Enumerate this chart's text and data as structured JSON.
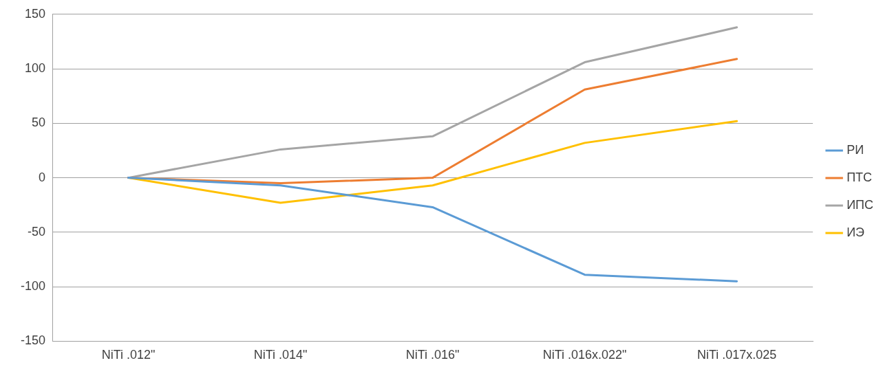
{
  "chart_data": {
    "type": "line",
    "categories": [
      "NiTi .012\"",
      "NiTi .014\"",
      "NiTi .016\"",
      "NiTi .016x.022\"",
      "NiTi .017x.025"
    ],
    "series": [
      {
        "name": "РИ",
        "color": "#5b9bd5",
        "values": [
          0,
          -7,
          -27,
          -89,
          -95
        ]
      },
      {
        "name": "ПТС",
        "color": "#ed7d31",
        "values": [
          0,
          -5,
          0,
          81,
          109
        ]
      },
      {
        "name": "ИПС",
        "color": "#a5a5a5",
        "values": [
          0,
          26,
          38,
          106,
          138
        ]
      },
      {
        "name": "ИЭ",
        "color": "#ffc000",
        "values": [
          0,
          -23,
          -7,
          32,
          52
        ]
      }
    ],
    "ylim": [
      -150,
      150
    ],
    "yticks": [
      -150,
      -100,
      -50,
      0,
      50,
      100,
      150
    ],
    "grid": "y",
    "legend": "right",
    "marker": "none",
    "line_style": "solid"
  }
}
